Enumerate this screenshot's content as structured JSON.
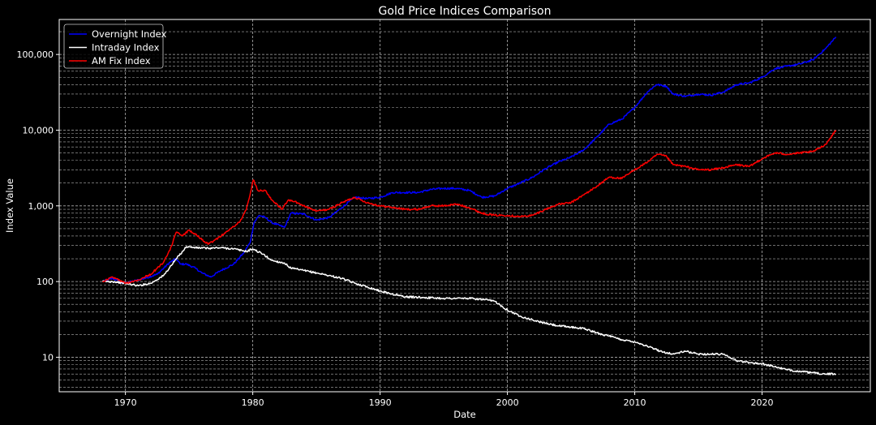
{
  "chart_data": {
    "type": "line",
    "title": "Gold Price Indices Comparison",
    "xlabel": "Date",
    "ylabel": "Index Value",
    "xlim": [
      1964.8,
      2028.5
    ],
    "ylim": [
      3.5,
      290000
    ],
    "yscale": "log",
    "grid": true,
    "legend_position": "top-left",
    "x_ticks": [
      1970,
      1980,
      1990,
      2000,
      2010,
      2020
    ],
    "x_tick_labels": [
      "1970",
      "1980",
      "1990",
      "2000",
      "2010",
      "2020"
    ],
    "y_ticks": [
      10,
      100,
      1000,
      10000,
      100000
    ],
    "y_tick_labels": [
      "10",
      "100",
      "1,000",
      "10,000",
      "100,000"
    ],
    "series": [
      {
        "name": "Overnight Index",
        "color": "#0000ff",
        "x": [
          1968.2,
          1969,
          1969.8,
          1970.5,
          1971.5,
          1972.5,
          1973,
          1973.5,
          1974,
          1974.3,
          1974.8,
          1975.5,
          1976,
          1976.7,
          1977.5,
          1978.5,
          1979.3,
          1979.8,
          1980.1,
          1980.5,
          1981,
          1981.5,
          1982.5,
          1983,
          1984,
          1985,
          1986,
          1987,
          1988,
          1989,
          1990,
          1991,
          1992,
          1993,
          1994,
          1995,
          1996,
          1997,
          1998,
          1999,
          2000,
          2001,
          2002,
          2003,
          2004,
          2005,
          2006,
          2007,
          2008,
          2009,
          2010,
          2011,
          2011.7,
          2012.5,
          2013,
          2014,
          2015,
          2016,
          2017,
          2018,
          2019,
          2020,
          2021,
          2022,
          2023,
          2024,
          2025,
          2025.8
        ],
        "values": [
          100,
          110,
          95,
          100,
          110,
          125,
          150,
          180,
          200,
          170,
          170,
          150,
          130,
          115,
          140,
          170,
          240,
          330,
          600,
          750,
          700,
          600,
          520,
          800,
          780,
          650,
          700,
          950,
          1300,
          1250,
          1300,
          1500,
          1500,
          1500,
          1650,
          1700,
          1700,
          1600,
          1300,
          1350,
          1700,
          2000,
          2400,
          3100,
          3800,
          4400,
          5500,
          8000,
          12000,
          14000,
          20000,
          32000,
          40000,
          38000,
          30000,
          28000,
          30000,
          29000,
          32000,
          40000,
          42000,
          50000,
          65000,
          70000,
          75000,
          85000,
          120000,
          170000
        ]
      },
      {
        "name": "Intraday Index",
        "color": "#ffffff",
        "x": [
          1968.2,
          1969,
          1970,
          1971,
          1972,
          1973,
          1974,
          1974.8,
          1975.5,
          1976.5,
          1977.5,
          1978.5,
          1979.5,
          1980,
          1980.8,
          1981.5,
          1982.5,
          1983,
          1984,
          1985,
          1986,
          1987,
          1988,
          1989,
          1990,
          1991,
          1992,
          1993,
          1994,
          1995,
          1996,
          1997,
          1998,
          1999,
          2000,
          2001,
          2002,
          2003,
          2004,
          2005,
          2006,
          2007,
          2008,
          2009,
          2010,
          2011,
          2012,
          2013,
          2014,
          2015,
          2016,
          2017,
          2018,
          2019,
          2020,
          2021,
          2022,
          2023,
          2024,
          2025,
          2025.8
        ],
        "values": [
          100,
          100,
          95,
          88,
          95,
          120,
          200,
          290,
          280,
          275,
          280,
          270,
          250,
          270,
          230,
          190,
          175,
          150,
          140,
          130,
          120,
          110,
          95,
          85,
          75,
          68,
          63,
          62,
          61,
          60,
          60,
          60,
          58,
          55,
          42,
          35,
          31,
          28,
          26,
          25,
          24,
          21,
          19,
          17,
          16,
          14,
          12,
          11,
          12,
          11,
          11,
          11,
          9,
          8.5,
          8.2,
          7.5,
          6.8,
          6.5,
          6.2,
          6.0,
          6.0
        ]
      },
      {
        "name": "AM Fix Index",
        "color": "#ff0000",
        "x": [
          1968.2,
          1969,
          1970,
          1971,
          1972,
          1973,
          1973.5,
          1974,
          1974.5,
          1975,
          1975.5,
          1976.5,
          1977,
          1978,
          1979,
          1979.5,
          1980.05,
          1980.4,
          1981,
          1981.5,
          1982.3,
          1982.8,
          1983.5,
          1984,
          1985,
          1986,
          1987,
          1988,
          1989,
          1990,
          1991,
          1992,
          1993,
          1994,
          1995,
          1996,
          1997,
          1998,
          1999,
          2000,
          2001,
          2002,
          2003,
          2004,
          2005,
          2006,
          2007,
          2008,
          2009,
          2010,
          2011,
          2011.8,
          2012.5,
          2013,
          2014,
          2015,
          2016,
          2017,
          2018,
          2019,
          2020,
          2021,
          2022,
          2023,
          2024,
          2025,
          2025.8
        ],
        "values": [
          100,
          115,
          95,
          105,
          125,
          180,
          260,
          450,
          400,
          480,
          420,
          310,
          350,
          460,
          620,
          900,
          2200,
          1600,
          1600,
          1200,
          900,
          1200,
          1100,
          1000,
          850,
          900,
          1100,
          1300,
          1100,
          1000,
          950,
          900,
          900,
          1000,
          1000,
          1050,
          950,
          800,
          750,
          750,
          720,
          750,
          900,
          1050,
          1100,
          1400,
          1800,
          2400,
          2300,
          3000,
          3800,
          4800,
          4500,
          3500,
          3300,
          3000,
          3000,
          3200,
          3500,
          3300,
          4200,
          5000,
          4800,
          5000,
          5200,
          6500,
          10000
        ]
      }
    ]
  }
}
